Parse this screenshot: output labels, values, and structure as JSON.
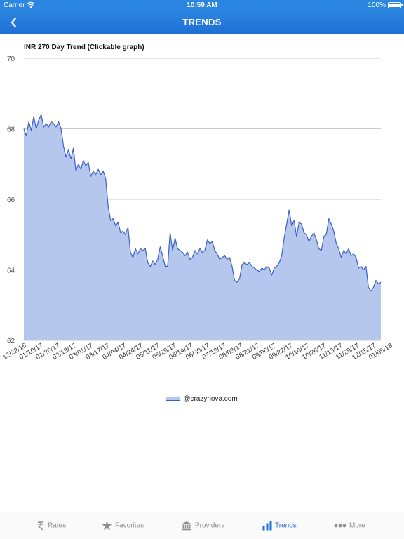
{
  "status_bar": {
    "carrier": "Carrier",
    "time": "10:59 AM",
    "battery": "100%",
    "wifi_icon": "wifi-icon",
    "battery_icon": "battery-icon"
  },
  "nav": {
    "title": "TRENDS",
    "back_icon": "chevron-left-icon"
  },
  "chart_data": {
    "type": "area",
    "title": "INR 270 Day Trend (Clickable graph)",
    "xlabel": "",
    "ylabel": "",
    "ylim": [
      62,
      70
    ],
    "yticks": [
      62,
      64,
      66,
      68,
      70
    ],
    "grid": true,
    "xtick_labels": [
      "12/22/16",
      "01/10/17",
      "01/26/17",
      "02/13/17",
      "03/01/17",
      "03/17/17",
      "04/04/17",
      "04/24/17",
      "05/11/17",
      "05/29/17",
      "06/14/17",
      "06/30/17",
      "07/18/17",
      "08/03/17",
      "08/21/17",
      "09/06/17",
      "09/22/17",
      "10/10/17",
      "10/26/17",
      "11/13/17",
      "11/29/17",
      "12/15/17",
      "01/05/18"
    ],
    "values": [
      68.0,
      67.8,
      68.2,
      67.95,
      68.35,
      68.0,
      68.25,
      68.4,
      68.05,
      68.15,
      68.05,
      68.2,
      68.15,
      68.05,
      68.2,
      68.0,
      67.5,
      67.2,
      67.4,
      67.15,
      67.45,
      66.8,
      67.0,
      66.85,
      67.1,
      66.95,
      67.05,
      66.65,
      66.8,
      66.7,
      66.85,
      66.7,
      66.8,
      66.6,
      65.8,
      65.4,
      65.45,
      65.25,
      65.35,
      65.05,
      65.1,
      65.0,
      65.2,
      64.5,
      64.35,
      64.6,
      64.45,
      64.6,
      64.55,
      64.6,
      64.2,
      64.1,
      64.25,
      64.15,
      64.3,
      64.65,
      64.4,
      64.1,
      64.1,
      65.05,
      64.55,
      64.9,
      64.6,
      64.55,
      64.5,
      64.4,
      64.5,
      64.3,
      64.35,
      64.55,
      64.45,
      64.6,
      64.5,
      64.55,
      64.85,
      64.75,
      64.8,
      64.55,
      64.45,
      64.3,
      64.35,
      64.4,
      64.3,
      64.35,
      64.1,
      63.7,
      63.65,
      63.75,
      64.15,
      64.2,
      64.15,
      64.2,
      64.1,
      64.05,
      64.0,
      63.95,
      64.05,
      64.0,
      64.1,
      64.05,
      63.85,
      64.05,
      64.1,
      64.2,
      64.4,
      64.9,
      65.3,
      65.7,
      65.25,
      65.4,
      64.95,
      65.35,
      65.3,
      65.05,
      65.0,
      64.8,
      64.95,
      65.05,
      64.85,
      64.6,
      64.55,
      64.95,
      65.0,
      65.45,
      65.3,
      65.1,
      64.75,
      64.6,
      64.35,
      64.55,
      64.45,
      64.6,
      64.4,
      64.45,
      64.35,
      64.05,
      64.1,
      64.0,
      64.1,
      63.5,
      63.4,
      63.5,
      63.7,
      63.6,
      63.65
    ],
    "series": [
      {
        "name": "@crazynova.com"
      }
    ],
    "legend_position": "bottom-center",
    "colors": {
      "line": "#3b5fc4",
      "fill": "#b6c7ee",
      "grid": "#cccccc"
    }
  },
  "tabs": [
    {
      "label": "Rates",
      "icon": "rupee-icon",
      "active": false
    },
    {
      "label": "Favorites",
      "icon": "star-icon",
      "active": false
    },
    {
      "label": "Providers",
      "icon": "bank-icon",
      "active": false
    },
    {
      "label": "Trends",
      "icon": "bar-chart-icon",
      "active": true
    },
    {
      "label": "More",
      "icon": "more-dots-icon",
      "active": false
    }
  ],
  "colors": {
    "accent": "#1f6fd6",
    "header": "#2a86e0",
    "inactive_tab": "#8e8e8e"
  }
}
